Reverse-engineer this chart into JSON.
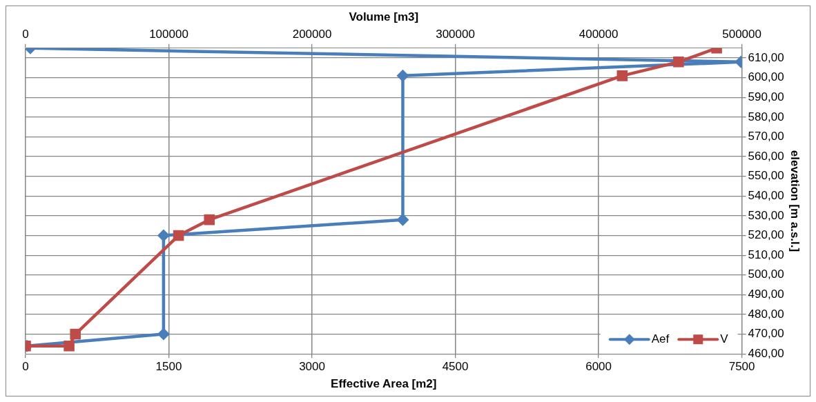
{
  "chart_data": {
    "type": "line",
    "xlabel": "Effective Area [m2]",
    "x2label": "Volume [m3]",
    "ylabel": "elevation [m a.s.l.]",
    "xlim": [
      0,
      7500
    ],
    "xticks": [
      0,
      1500,
      3000,
      4500,
      6000,
      7500
    ],
    "x2lim": [
      0,
      500000
    ],
    "x2ticks": [
      0,
      100000,
      200000,
      300000,
      400000,
      500000
    ],
    "ylim": [
      460,
      615
    ],
    "yticks": [
      {
        "value": 460,
        "label": "460,00"
      },
      {
        "value": 470,
        "label": "470,00"
      },
      {
        "value": 480,
        "label": "480,00"
      },
      {
        "value": 490,
        "label": "490,00"
      },
      {
        "value": 500,
        "label": "500,00"
      },
      {
        "value": 510,
        "label": "510,00"
      },
      {
        "value": 520,
        "label": "520,00"
      },
      {
        "value": 530,
        "label": "530,00"
      },
      {
        "value": 540,
        "label": "540,00"
      },
      {
        "value": 550,
        "label": "550,00"
      },
      {
        "value": 560,
        "label": "560,00"
      },
      {
        "value": 570,
        "label": "570,00"
      },
      {
        "value": 580,
        "label": "580,00"
      },
      {
        "value": 590,
        "label": "590,00"
      },
      {
        "value": 600,
        "label": "600,00"
      },
      {
        "value": 610,
        "label": "610,00"
      }
    ],
    "series": [
      {
        "name": "Aef",
        "color": "#4a7ebb",
        "marker": "diamond",
        "x": [
          15,
          1445,
          1445,
          3950,
          3950,
          7490,
          50
        ],
        "values": [
          464,
          470,
          520,
          528,
          601,
          608,
          615
        ]
      },
      {
        "name": "V",
        "color": "#be4b48",
        "marker": "square",
        "axis": "x2",
        "x": [
          0,
          30400,
          34800,
          106800,
          128300,
          416500,
          455800,
          482400
        ],
        "values": [
          464,
          464,
          470,
          520,
          528,
          601,
          608,
          615
        ]
      }
    ],
    "grid": true,
    "legend": "bottom right"
  }
}
